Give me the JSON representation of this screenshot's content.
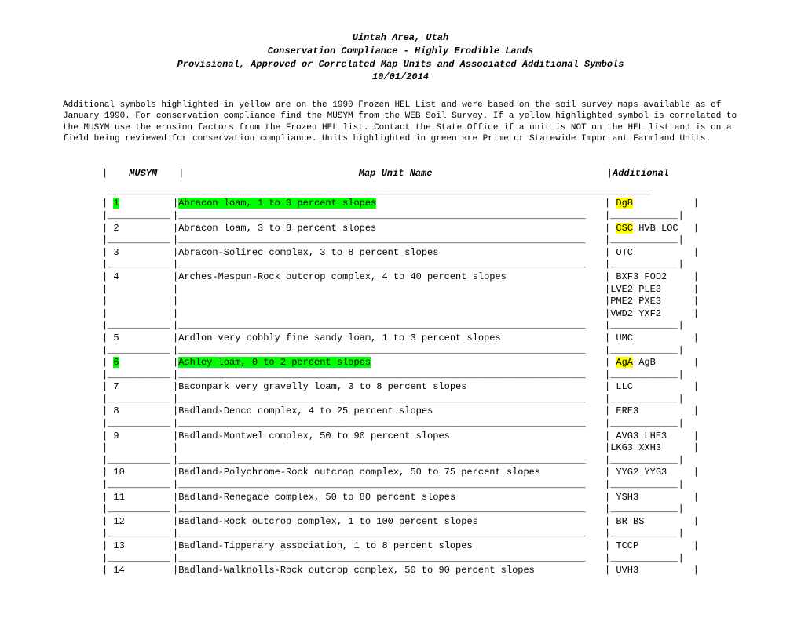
{
  "header": {
    "line1": "Uintah Area, Utah",
    "line2": "Conservation Compliance - Highly Erodible Lands",
    "line3": "Provisional, Approved or Correlated Map Units and Associated Additional Symbols",
    "line4": "10/01/2014"
  },
  "intro": "Additional symbols highlighted in yellow are on the 1990 Frozen HEL List and were based on the soil survey maps available as of January 1990. For conservation compliance find the MUSYM from the WEB Soil Survey. If a yellow highlighted symbol is correlated to the MUSYM use the erosion factors from the Frozen HEL list. Contact the State Office if a unit is NOT on the HEL list and is on a field being reviewed for conservation compliance. Units highlighted in green are Prime or Statewide Important Farmland Units.",
  "columns": {
    "musym": "MUSYM",
    "name": "Map Unit Name",
    "additional": "Additional"
  },
  "colors": {
    "green": "#00ff00",
    "yellow": "#ffff00",
    "text": "#000000",
    "bg": "#ffffff"
  },
  "rows": [
    {
      "musym": "1",
      "musym_hl": "green",
      "name": "Abracon loam, 1 to 3 percent slopes",
      "name_hl": "green",
      "additional": [
        {
          "text": "DgB",
          "hl": "yellow"
        }
      ]
    },
    {
      "musym": "2",
      "name": "Abracon loam, 3 to 8 percent slopes",
      "additional": [
        {
          "text": "CSC",
          "hl": "yellow"
        },
        {
          "text": " HVB LOC"
        }
      ]
    },
    {
      "musym": "3",
      "name": "Abracon-Solirec complex, 3 to 8 percent slopes",
      "additional": [
        {
          "text": "OTC"
        }
      ]
    },
    {
      "musym": "4",
      "name": "Arches-Mespun-Rock outcrop complex, 4 to 40 percent slopes",
      "additional": [
        {
          "text": "BXF3 FOD2"
        }
      ],
      "extra": [
        "LVE2 PLE3",
        "PME2 PXE3",
        "VWD2 YXF2"
      ]
    },
    {
      "musym": "5",
      "name": "Ardlon very cobbly fine sandy loam, 1 to 3 percent slopes",
      "additional": [
        {
          "text": "UMC"
        }
      ]
    },
    {
      "musym": "6",
      "musym_hl": "green",
      "name": "Ashley loam, 0 to 2 percent slopes",
      "name_hl": "green",
      "additional": [
        {
          "text": "AgA",
          "hl": "yellow"
        },
        {
          "text": " AgB"
        }
      ]
    },
    {
      "musym": "7",
      "name": "Baconpark very gravelly loam, 3 to 8 percent slopes",
      "additional": [
        {
          "text": "LLC"
        }
      ]
    },
    {
      "musym": "8",
      "name": "Badland-Denco complex, 4 to 25 percent slopes",
      "additional": [
        {
          "text": "ERE3"
        }
      ]
    },
    {
      "musym": "9",
      "name": "Badland-Montwel complex, 50 to 90 percent slopes",
      "additional": [
        {
          "text": "AVG3 LHE3"
        }
      ],
      "extra": [
        "LKG3 XXH3"
      ]
    },
    {
      "musym": "10",
      "name": "Badland-Polychrome-Rock outcrop complex, 50 to 75 percent slopes",
      "additional": [
        {
          "text": "YYG2 YYG3"
        }
      ]
    },
    {
      "musym": "11",
      "name": "Badland-Renegade complex, 50 to 80 percent slopes",
      "additional": [
        {
          "text": "YSH3"
        }
      ]
    },
    {
      "musym": "12",
      "name": "Badland-Rock outcrop complex, 1 to 100 percent slopes",
      "additional": [
        {
          "text": "BR BS"
        }
      ]
    },
    {
      "musym": "13",
      "name": "Badland-Tipperary association, 1 to 8 percent slopes",
      "additional": [
        {
          "text": "TCCP"
        }
      ]
    },
    {
      "musym": "14",
      "name": "Badland-Walknolls-Rock outcrop complex, 50 to 90 percent slopes",
      "additional": [
        {
          "text": "UVH3"
        }
      ]
    }
  ],
  "sep": {
    "s1": "|___________",
    "s2": "|________________________________________________________________________",
    "s3": "|____________|"
  },
  "topline": " ________________________________________________________________________________________________"
}
